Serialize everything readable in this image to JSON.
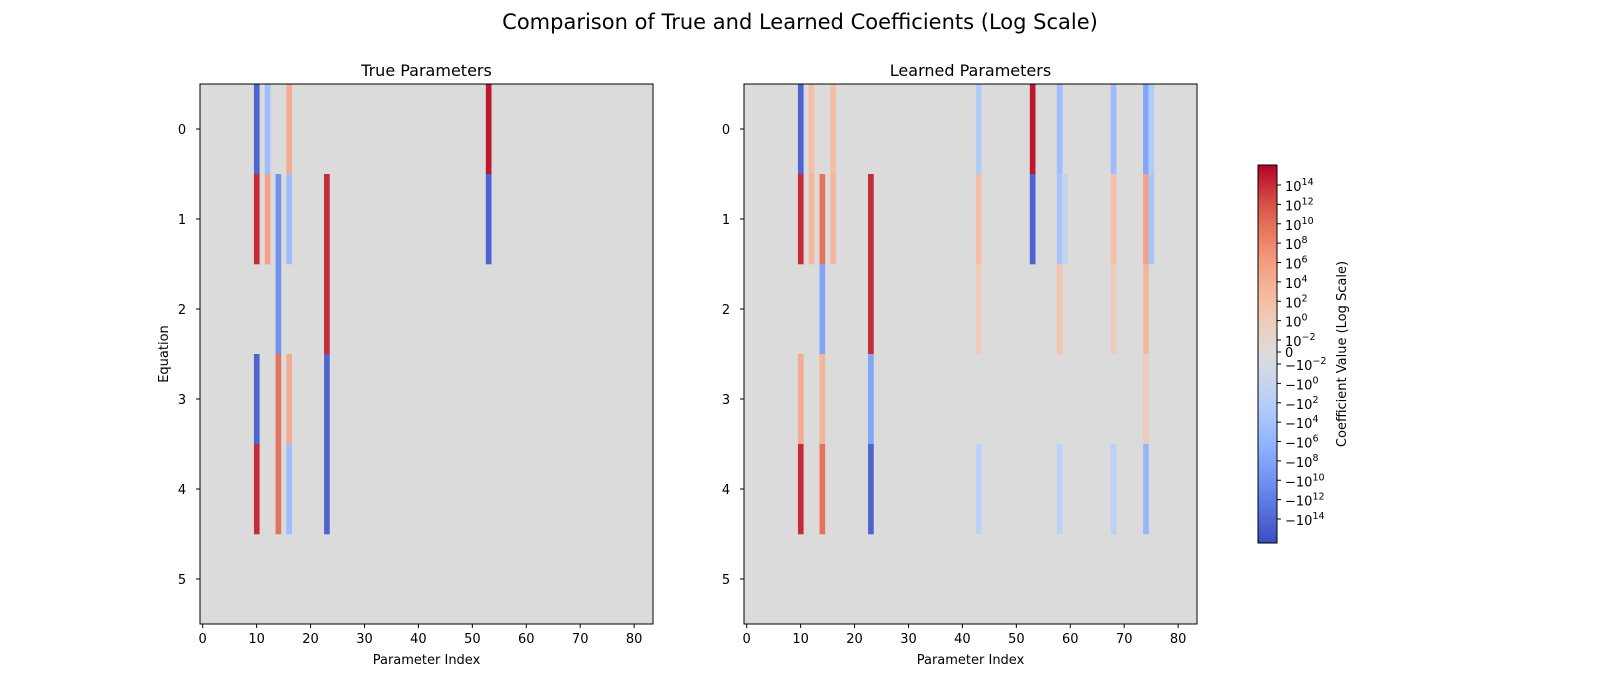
{
  "figure": {
    "title": "Comparison of True and Learned Coefficients (Log Scale)"
  },
  "chart_data": [
    {
      "type": "heatmap",
      "title": "True Parameters",
      "xlabel": "Parameter Index",
      "ylabel": "Equation",
      "n_cols": 84,
      "n_rows": 6,
      "xticks": [
        0,
        10,
        20,
        30,
        40,
        50,
        60,
        70,
        80
      ],
      "yticks": [
        0,
        1,
        2,
        3,
        4,
        5
      ],
      "cells": [
        {
          "row": 0,
          "col": 10,
          "level": -14
        },
        {
          "row": 0,
          "col": 12,
          "level": -5
        },
        {
          "row": 0,
          "col": 16,
          "level": 5
        },
        {
          "row": 0,
          "col": 53,
          "level": 15
        },
        {
          "row": 1,
          "col": 10,
          "level": 14
        },
        {
          "row": 1,
          "col": 12,
          "level": 6
        },
        {
          "row": 1,
          "col": 14,
          "level": -10
        },
        {
          "row": 1,
          "col": 16,
          "level": -5
        },
        {
          "row": 1,
          "col": 23,
          "level": 14
        },
        {
          "row": 1,
          "col": 53,
          "level": -14
        },
        {
          "row": 2,
          "col": 14,
          "level": -10
        },
        {
          "row": 2,
          "col": 23,
          "level": 14
        },
        {
          "row": 3,
          "col": 10,
          "level": -14
        },
        {
          "row": 3,
          "col": 14,
          "level": 10
        },
        {
          "row": 3,
          "col": 16,
          "level": 5
        },
        {
          "row": 3,
          "col": 23,
          "level": -14
        },
        {
          "row": 4,
          "col": 10,
          "level": 14
        },
        {
          "row": 4,
          "col": 14,
          "level": 10
        },
        {
          "row": 4,
          "col": 16,
          "level": -5
        },
        {
          "row": 4,
          "col": 23,
          "level": -14
        }
      ]
    },
    {
      "type": "heatmap",
      "title": "Learned Parameters",
      "xlabel": "Parameter Index",
      "ylabel": "",
      "n_cols": 84,
      "n_rows": 6,
      "xticks": [
        0,
        10,
        20,
        30,
        40,
        50,
        60,
        70,
        80
      ],
      "yticks": [
        0,
        1,
        2,
        3,
        4,
        5
      ],
      "cells": [
        {
          "row": 0,
          "col": 10,
          "level": -14
        },
        {
          "row": 0,
          "col": 12,
          "level": 3
        },
        {
          "row": 0,
          "col": 16,
          "level": 3
        },
        {
          "row": 0,
          "col": 43,
          "level": -3
        },
        {
          "row": 0,
          "col": 53,
          "level": 15
        },
        {
          "row": 0,
          "col": 58,
          "level": -5
        },
        {
          "row": 0,
          "col": 68,
          "level": -5
        },
        {
          "row": 0,
          "col": 74,
          "level": -8
        },
        {
          "row": 0,
          "col": 75,
          "level": -3
        },
        {
          "row": 1,
          "col": 10,
          "level": 14
        },
        {
          "row": 1,
          "col": 12,
          "level": 4
        },
        {
          "row": 1,
          "col": 14,
          "level": 10
        },
        {
          "row": 1,
          "col": 16,
          "level": 4
        },
        {
          "row": 1,
          "col": 23,
          "level": 14
        },
        {
          "row": 1,
          "col": 43,
          "level": 3
        },
        {
          "row": 1,
          "col": 53,
          "level": -14
        },
        {
          "row": 1,
          "col": 58,
          "level": -4
        },
        {
          "row": 1,
          "col": 59,
          "level": -1
        },
        {
          "row": 1,
          "col": 68,
          "level": 3
        },
        {
          "row": 1,
          "col": 74,
          "level": 6
        },
        {
          "row": 1,
          "col": 75,
          "level": -4
        },
        {
          "row": 2,
          "col": 14,
          "level": -8
        },
        {
          "row": 2,
          "col": 23,
          "level": 14
        },
        {
          "row": 2,
          "col": 43,
          "level": 1
        },
        {
          "row": 2,
          "col": 58,
          "level": 2
        },
        {
          "row": 2,
          "col": 68,
          "level": 1
        },
        {
          "row": 2,
          "col": 74,
          "level": 4
        },
        {
          "row": 3,
          "col": 10,
          "level": 5
        },
        {
          "row": 3,
          "col": 14,
          "level": 4
        },
        {
          "row": 3,
          "col": 23,
          "level": -8
        },
        {
          "row": 3,
          "col": 74,
          "level": 1
        },
        {
          "row": 4,
          "col": 10,
          "level": 14
        },
        {
          "row": 4,
          "col": 14,
          "level": 10
        },
        {
          "row": 4,
          "col": 23,
          "level": -14
        },
        {
          "row": 4,
          "col": 43,
          "level": -2
        },
        {
          "row": 4,
          "col": 58,
          "level": -2
        },
        {
          "row": 4,
          "col": 68,
          "level": -2
        },
        {
          "row": 4,
          "col": 74,
          "level": -6
        }
      ]
    }
  ],
  "colorbar": {
    "label": "Coefficient Value (Log Scale)",
    "colormap": "coolwarm",
    "scale": "symlog",
    "range_exponent": 16,
    "ticks": [
      {
        "base": "10",
        "exp": "14",
        "value": 14
      },
      {
        "base": "10",
        "exp": "12",
        "value": 12
      },
      {
        "base": "10",
        "exp": "10",
        "value": 10
      },
      {
        "base": "10",
        "exp": "8",
        "value": 8
      },
      {
        "base": "10",
        "exp": "6",
        "value": 6
      },
      {
        "base": "10",
        "exp": "4",
        "value": 4
      },
      {
        "base": "10",
        "exp": "2",
        "value": 2
      },
      {
        "base": "10",
        "exp": "0",
        "value": 0
      },
      {
        "base": "10",
        "exp": "−2",
        "value": -2
      },
      {
        "base": "0",
        "exp": "",
        "value": null,
        "zero": true
      },
      {
        "base": "−10",
        "exp": "−2",
        "value": -2,
        "neg": true
      },
      {
        "base": "−10",
        "exp": "0",
        "value": 0,
        "neg": true
      },
      {
        "base": "−10",
        "exp": "2",
        "value": 2,
        "neg": true
      },
      {
        "base": "−10",
        "exp": "4",
        "value": 4,
        "neg": true
      },
      {
        "base": "−10",
        "exp": "6",
        "value": 6,
        "neg": true
      },
      {
        "base": "−10",
        "exp": "8",
        "value": 8,
        "neg": true
      },
      {
        "base": "−10",
        "exp": "10",
        "value": 10,
        "neg": true
      },
      {
        "base": "−10",
        "exp": "12",
        "value": 12,
        "neg": true
      },
      {
        "base": "−10",
        "exp": "14",
        "value": 14,
        "neg": true
      }
    ]
  }
}
